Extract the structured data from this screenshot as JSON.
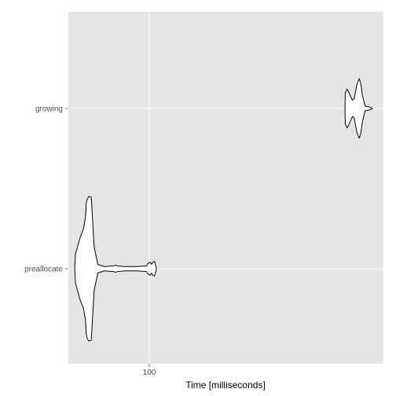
{
  "chart_data": {
    "type": "violin",
    "orientation": "horizontal",
    "title": "",
    "xlabel": "Time [milliseconds]",
    "ylabel": "",
    "x_scale": "log",
    "xlim": [
      59,
      460
    ],
    "x_ticks": [
      {
        "value": 100,
        "label": "100"
      }
    ],
    "categories": [
      "preallocate",
      "growing"
    ],
    "grid": true,
    "legend": "none",
    "colors": {
      "panel_background": "#e5e5e5",
      "grid_line": "#ffffff",
      "violin_outline": "#000000",
      "violin_fill": "#ffffff",
      "tick_label": "#4d4d4d",
      "axis_title": "#000000"
    },
    "series": [
      {
        "category": "preallocate",
        "profile": [
          [
            61.5,
            0.0
          ],
          [
            61.8,
            0.2
          ],
          [
            62.6,
            0.3
          ],
          [
            63.6,
            0.42
          ],
          [
            65.1,
            0.55
          ],
          [
            66.0,
            0.72
          ],
          [
            66.3,
            0.9
          ],
          [
            66.7,
            0.96
          ],
          [
            67.4,
            1.0
          ],
          [
            68.5,
            0.99
          ],
          [
            69.8,
            0.3
          ],
          [
            71.5,
            0.06
          ],
          [
            74.5,
            0.03
          ],
          [
            79.5,
            0.04
          ],
          [
            80.3,
            0.05
          ],
          [
            81.2,
            0.04
          ],
          [
            85.0,
            0.03
          ],
          [
            92.0,
            0.03
          ],
          [
            98.3,
            0.04
          ],
          [
            99.0,
            0.07
          ],
          [
            100.5,
            0.09
          ],
          [
            101.5,
            0.06
          ],
          [
            102.3,
            0.09
          ],
          [
            103.5,
            0.1
          ],
          [
            104.8,
            0.0
          ]
        ]
      },
      {
        "category": "growing",
        "profile": [
          [
            358.0,
            0.0
          ],
          [
            358.8,
            0.52
          ],
          [
            363.0,
            0.65
          ],
          [
            366.0,
            0.58
          ],
          [
            372.0,
            0.38
          ],
          [
            376.0,
            0.27
          ],
          [
            380.0,
            0.32
          ],
          [
            387.0,
            0.8
          ],
          [
            393.0,
            1.0
          ],
          [
            397.0,
            0.82
          ],
          [
            401.0,
            0.45
          ],
          [
            408.0,
            0.08
          ],
          [
            420.0,
            0.05
          ],
          [
            428.0,
            0.0
          ]
        ]
      }
    ]
  }
}
